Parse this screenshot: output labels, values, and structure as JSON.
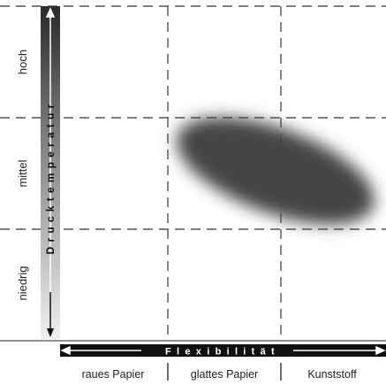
{
  "y_axis": {
    "label": "Drucktemperatur",
    "levels": [
      "niedrig",
      "mittel",
      "hoch"
    ]
  },
  "x_axis": {
    "label": "Flexibilität",
    "categories": [
      "raues Papier",
      "glattes Papier",
      "Kunststoff"
    ]
  },
  "region": {
    "note": "dark blurred ellipse spanning glattes Papier to Kunststoff at mittel level"
  }
}
